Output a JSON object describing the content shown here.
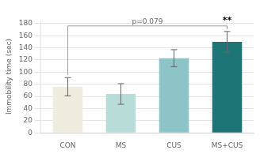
{
  "chart_data": {
    "type": "bar",
    "categories": [
      "CON",
      "MS",
      "CUS",
      "MS+CUS"
    ],
    "values": [
      76,
      64,
      123,
      150
    ],
    "errors": [
      15,
      17,
      14,
      17
    ],
    "colors": [
      "#f0ece0",
      "#b8ddd8",
      "#8dc4c8",
      "#1d7575"
    ],
    "ylabel": "Immobility time (sec)",
    "ylim": [
      0,
      185
    ],
    "yticks": [
      0,
      20,
      40,
      60,
      80,
      100,
      120,
      140,
      160,
      180
    ],
    "grid": true,
    "annotations": [
      {
        "text": "p=0.079",
        "from": "CON",
        "to": "MS+CUS"
      },
      {
        "text": "**",
        "category": "MS+CUS"
      }
    ]
  }
}
